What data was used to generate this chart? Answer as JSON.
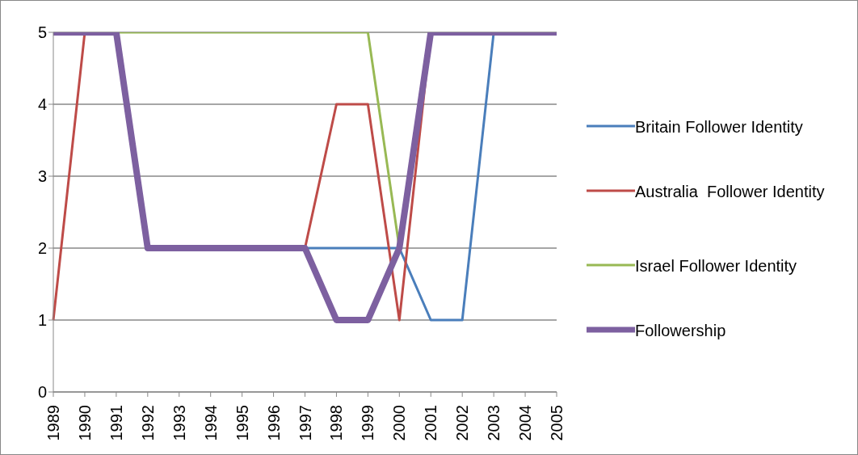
{
  "chart_data": {
    "type": "line",
    "categories": [
      "1989",
      "1990",
      "1991",
      "1992",
      "1993",
      "1994",
      "1995",
      "1996",
      "1997",
      "1998",
      "1999",
      "2000",
      "2001",
      "2002",
      "2003",
      "2004",
      "2005"
    ],
    "series": [
      {
        "name": "Britain Follower Identity",
        "color": "#4a7ebb",
        "values": [
          null,
          null,
          null,
          null,
          null,
          null,
          null,
          null,
          2,
          2,
          2,
          2,
          1,
          1,
          5,
          null,
          null
        ]
      },
      {
        "name": "Australia  Follower Identity",
        "color": "#be4b48",
        "values": [
          1,
          5,
          null,
          null,
          null,
          null,
          null,
          null,
          2,
          4,
          4,
          1,
          5,
          null,
          null,
          null,
          null
        ]
      },
      {
        "name": "Israel Follower Identity",
        "color": "#98b954",
        "values": [
          5,
          5,
          5,
          5,
          5,
          5,
          5,
          5,
          5,
          5,
          5,
          2,
          5,
          null,
          null,
          null,
          null
        ]
      },
      {
        "name": "Followership",
        "color": "#7d60a0",
        "values": [
          5,
          5,
          5,
          2,
          2,
          2,
          2,
          2,
          2,
          1,
          1,
          2,
          5,
          5,
          5,
          5,
          5
        ]
      }
    ],
    "ylim": [
      0,
      5
    ],
    "yticks": [
      0,
      1,
      2,
      3,
      4,
      5
    ],
    "grid": "y",
    "legend": "right",
    "marker": "none",
    "line_style": "solid"
  }
}
